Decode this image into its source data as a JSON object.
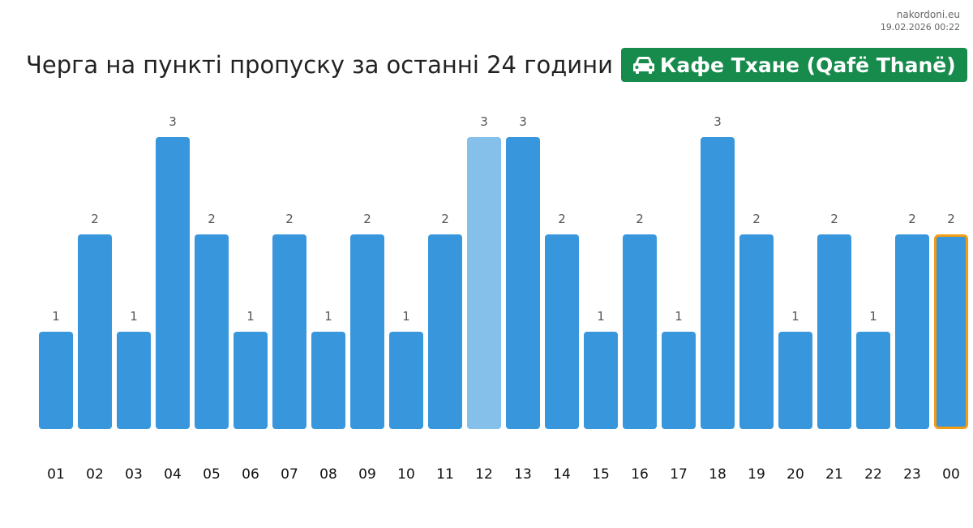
{
  "source": {
    "site": "nakordoni.eu",
    "timestamp": "19.02.2026 00:22"
  },
  "header": {
    "title": "Черга на пункті пропуску за останні 24 години",
    "checkpoint_icon": "car-icon",
    "checkpoint_name": "Кафе Тхане (Qafë Thanë)",
    "badge_color": "#178b4c"
  },
  "chart_data": {
    "type": "bar",
    "title": "Черга на пункті пропуску за останні 24 години",
    "xlabel": "",
    "ylabel": "",
    "categories": [
      "01",
      "02",
      "03",
      "04",
      "05",
      "06",
      "07",
      "08",
      "09",
      "10",
      "11",
      "12",
      "13",
      "14",
      "15",
      "16",
      "17",
      "18",
      "19",
      "20",
      "21",
      "22",
      "23",
      "00"
    ],
    "values": [
      1,
      2,
      1,
      3,
      2,
      1,
      2,
      1,
      2,
      1,
      2,
      3,
      3,
      2,
      1,
      2,
      1,
      3,
      2,
      1,
      2,
      1,
      2,
      2
    ],
    "ylim": [
      0,
      3
    ],
    "grid": false,
    "legend": "none",
    "bar_color": "#3897dc",
    "highlighted_category": "12",
    "highlight_color": "#85c0ea",
    "current_category": "00",
    "current_border_color": "#f39c12"
  }
}
